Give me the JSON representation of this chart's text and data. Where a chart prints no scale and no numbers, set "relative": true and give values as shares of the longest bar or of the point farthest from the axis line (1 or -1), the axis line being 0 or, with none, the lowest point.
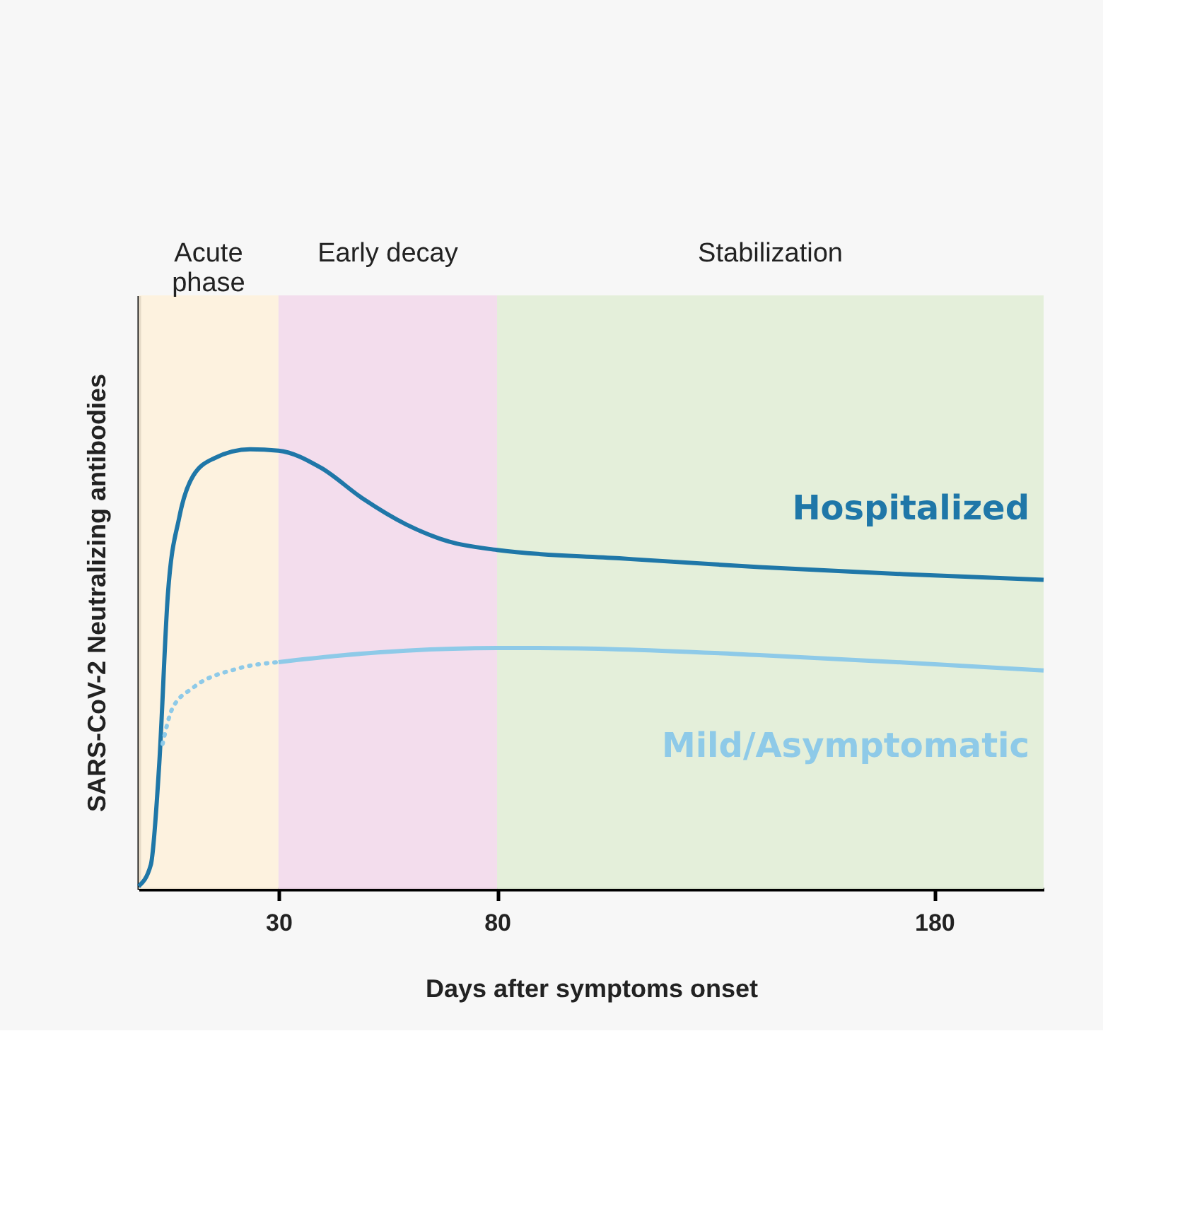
{
  "chart_data": {
    "type": "line",
    "relative": true,
    "xlabel": "Days after symptoms onset",
    "ylabel": "SARS-CoV-2 Neutralizing antibodies",
    "xlim": [
      -2,
      205
    ],
    "xticks": [
      30,
      80,
      180
    ],
    "tick_labels": "x",
    "grid": false,
    "marker": "none",
    "bands": [
      {
        "axis": "x",
        "from": -2,
        "to": 30,
        "label": "Acute\nphase",
        "color": "#fdf1dc"
      },
      {
        "axis": "x",
        "from": 30,
        "to": 80,
        "label": "Early decay",
        "color": "#f2d9eb"
      },
      {
        "axis": "x",
        "from": 80,
        "to": 205,
        "label": "Stabilization",
        "color": "#e1edd6"
      }
    ],
    "series": [
      {
        "name": "Hospitalized",
        "color": "#1f77a8",
        "line_style": "solid",
        "x": [
          -2,
          0.8,
          2.7,
          4.7,
          7.3,
          10.5,
          15.4,
          23.5,
          30,
          39.7,
          49.4,
          59.2,
          69,
          80,
          108,
          140,
          173,
          205
        ],
        "values": [
          0.006,
          0.055,
          0.28,
          0.67,
          0.845,
          0.94,
          0.98,
          1.0,
          0.997,
          0.958,
          0.887,
          0.829,
          0.79,
          0.771,
          0.752,
          0.732,
          0.716,
          0.703
        ]
      },
      {
        "name": "Mild/Asymptomatic",
        "color": "#8ecae8",
        "line_style": "solid",
        "x": [
          30,
          43,
          59.2,
          80,
          85.2,
          108,
          140,
          173,
          205
        ],
        "values": [
          0.516,
          0.53,
          0.542,
          0.548,
          0.548,
          0.545,
          0.532,
          0.515,
          0.497
        ]
      },
      {
        "color": "#8ecae8",
        "line_style": "dotted",
        "x": [
          3.5,
          5.7,
          10.5,
          20.2,
          30
        ],
        "values": [
          0.33,
          0.41,
          0.458,
          0.5,
          0.516
        ]
      }
    ]
  }
}
